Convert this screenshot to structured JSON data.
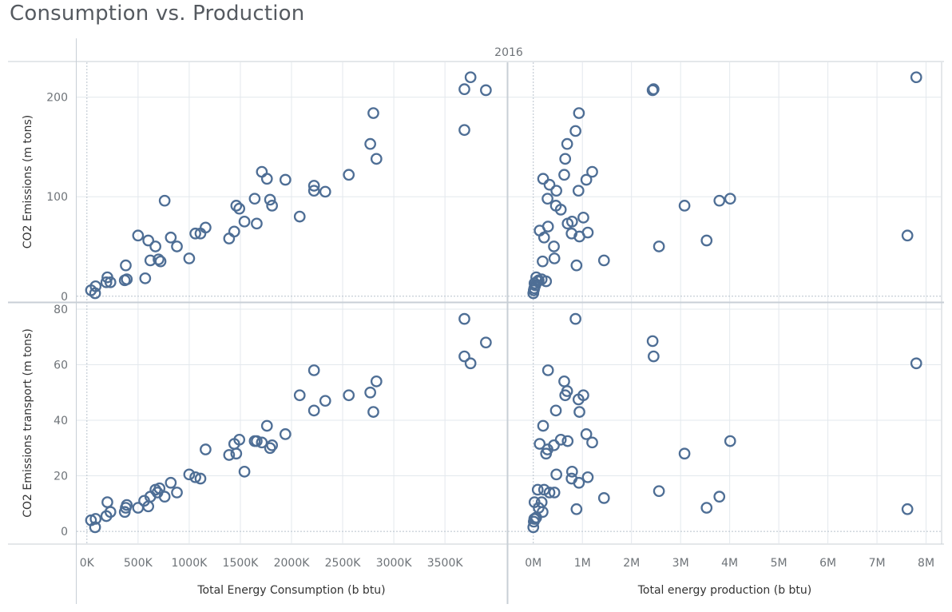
{
  "title": "Consumption vs. Production",
  "column_header": "2016",
  "colors": {
    "mark": "#4e6e95",
    "grid": "#e3e8ed",
    "border": "#c8cfd6",
    "zero": "#b8c2cc",
    "text": "#6e7378"
  },
  "chart_data": {
    "type": "scatter",
    "title": "Consumption vs. Production",
    "column_header": "2016",
    "x_axes": [
      {
        "label": "Total Energy Consumption (b btu)",
        "ticks": [
          "0K",
          "500K",
          "1000K",
          "1500K",
          "2000K",
          "2500K",
          "3000K",
          "3500K"
        ],
        "tick_values": [
          0,
          500000,
          1000000,
          1500000,
          2000000,
          2500000,
          3000000,
          3500000
        ],
        "range": [
          -100000,
          4100000
        ]
      },
      {
        "label": "Total energy production (b btu)",
        "ticks": [
          "0M",
          "1M",
          "2M",
          "3M",
          "4M",
          "5M",
          "6M",
          "7M",
          "8M"
        ],
        "tick_values": [
          0,
          1000000,
          2000000,
          3000000,
          4000000,
          5000000,
          6000000,
          7000000,
          8000000
        ],
        "range": [
          -500000,
          8300000
        ]
      }
    ],
    "y_axes": [
      {
        "label": "CO2 Emissions (m tons)",
        "ticks": [
          "0",
          "100",
          "200"
        ],
        "tick_values": [
          0,
          100,
          200
        ],
        "range": [
          -5,
          235
        ]
      },
      {
        "label": "CO2 Emissions transport (m tons)",
        "ticks": [
          "0",
          "20",
          "40",
          "60",
          "80"
        ],
        "tick_values": [
          0,
          20,
          40,
          60,
          80
        ],
        "range": [
          -4,
          82
        ]
      }
    ],
    "grid": true,
    "panels": [
      {
        "x_axis": 0,
        "y_axis": 0,
        "points": [
          [
            40000,
            6
          ],
          [
            80000,
            3
          ],
          [
            85000,
            10
          ],
          [
            190000,
            14
          ],
          [
            200000,
            19
          ],
          [
            230000,
            14
          ],
          [
            370000,
            16
          ],
          [
            390000,
            17
          ],
          [
            380000,
            31
          ],
          [
            500000,
            61
          ],
          [
            570000,
            18
          ],
          [
            600000,
            56
          ],
          [
            620000,
            36
          ],
          [
            670000,
            50
          ],
          [
            700000,
            37
          ],
          [
            720000,
            35
          ],
          [
            760000,
            96
          ],
          [
            820000,
            59
          ],
          [
            880000,
            50
          ],
          [
            1000000,
            38
          ],
          [
            1060000,
            63
          ],
          [
            1110000,
            63
          ],
          [
            1160000,
            69
          ],
          [
            1390000,
            58
          ],
          [
            1440000,
            65
          ],
          [
            1460000,
            91
          ],
          [
            1490000,
            88
          ],
          [
            1540000,
            75
          ],
          [
            1640000,
            98
          ],
          [
            1660000,
            73
          ],
          [
            1710000,
            125
          ],
          [
            1760000,
            118
          ],
          [
            1790000,
            97
          ],
          [
            1810000,
            91
          ],
          [
            1940000,
            117
          ],
          [
            2080000,
            80
          ],
          [
            2220000,
            111
          ],
          [
            2220000,
            106
          ],
          [
            2330000,
            105
          ],
          [
            2560000,
            122
          ],
          [
            2770000,
            153
          ],
          [
            2800000,
            184
          ],
          [
            2830000,
            138
          ],
          [
            3690000,
            208
          ],
          [
            3750000,
            220
          ],
          [
            3900000,
            207
          ],
          [
            3690000,
            167
          ]
        ]
      },
      {
        "x_axis": 1,
        "y_axis": 0,
        "points": [
          [
            0,
            3
          ],
          [
            10000,
            6
          ],
          [
            20000,
            8
          ],
          [
            25000,
            13
          ],
          [
            40000,
            11
          ],
          [
            60000,
            19
          ],
          [
            90000,
            15
          ],
          [
            110000,
            16
          ],
          [
            130000,
            66
          ],
          [
            170000,
            17
          ],
          [
            190000,
            35
          ],
          [
            200000,
            118
          ],
          [
            220000,
            59
          ],
          [
            260000,
            15
          ],
          [
            290000,
            98
          ],
          [
            300000,
            70
          ],
          [
            330000,
            112
          ],
          [
            420000,
            50
          ],
          [
            430000,
            38
          ],
          [
            460000,
            91
          ],
          [
            470000,
            106
          ],
          [
            560000,
            87
          ],
          [
            630000,
            122
          ],
          [
            650000,
            138
          ],
          [
            690000,
            153
          ],
          [
            700000,
            73
          ],
          [
            780000,
            63
          ],
          [
            790000,
            75
          ],
          [
            860000,
            166
          ],
          [
            880000,
            31
          ],
          [
            920000,
            106
          ],
          [
            930000,
            184
          ],
          [
            940000,
            60
          ],
          [
            1020000,
            79
          ],
          [
            1080000,
            117
          ],
          [
            1110000,
            64
          ],
          [
            1200000,
            125
          ],
          [
            1440000,
            36
          ],
          [
            2430000,
            207
          ],
          [
            2450000,
            208
          ],
          [
            2560000,
            50
          ],
          [
            3080000,
            91
          ],
          [
            3530000,
            56
          ],
          [
            3790000,
            96
          ],
          [
            4010000,
            98
          ],
          [
            7620000,
            61
          ],
          [
            7800000,
            220
          ]
        ]
      },
      {
        "x_axis": 0,
        "y_axis": 1,
        "points": [
          [
            40000,
            4
          ],
          [
            80000,
            1.5
          ],
          [
            85000,
            4.5
          ],
          [
            190000,
            5.5
          ],
          [
            200000,
            10.5
          ],
          [
            230000,
            7
          ],
          [
            370000,
            7
          ],
          [
            380000,
            8.5
          ],
          [
            390000,
            9.5
          ],
          [
            500000,
            8.5
          ],
          [
            560000,
            11
          ],
          [
            600000,
            9
          ],
          [
            620000,
            12.5
          ],
          [
            670000,
            15
          ],
          [
            690000,
            14
          ],
          [
            710000,
            15.5
          ],
          [
            760000,
            12.5
          ],
          [
            820000,
            17.5
          ],
          [
            880000,
            14
          ],
          [
            1000000,
            20.5
          ],
          [
            1060000,
            19.5
          ],
          [
            1110000,
            19
          ],
          [
            1160000,
            29.5
          ],
          [
            1390000,
            27.5
          ],
          [
            1440000,
            31.5
          ],
          [
            1460000,
            28
          ],
          [
            1490000,
            33
          ],
          [
            1540000,
            21.5
          ],
          [
            1640000,
            32.5
          ],
          [
            1660000,
            32.5
          ],
          [
            1710000,
            32
          ],
          [
            1760000,
            38
          ],
          [
            1790000,
            30
          ],
          [
            1810000,
            31
          ],
          [
            1940000,
            35
          ],
          [
            2080000,
            49
          ],
          [
            2220000,
            43.5
          ],
          [
            2220000,
            58
          ],
          [
            2330000,
            47
          ],
          [
            2560000,
            49
          ],
          [
            2770000,
            50
          ],
          [
            2800000,
            43
          ],
          [
            2830000,
            54
          ],
          [
            3690000,
            76.5
          ],
          [
            3690000,
            63
          ],
          [
            3750000,
            60.5
          ],
          [
            3900000,
            68
          ]
        ]
      },
      {
        "x_axis": 1,
        "y_axis": 1,
        "points": [
          [
            0,
            1.5
          ],
          [
            10000,
            3.5
          ],
          [
            20000,
            4.5
          ],
          [
            25000,
            10.5
          ],
          [
            40000,
            4.5
          ],
          [
            60000,
            5
          ],
          [
            90000,
            15
          ],
          [
            110000,
            8.5
          ],
          [
            130000,
            31.5
          ],
          [
            170000,
            10.5
          ],
          [
            190000,
            7
          ],
          [
            200000,
            38
          ],
          [
            220000,
            15
          ],
          [
            260000,
            28
          ],
          [
            290000,
            29.5
          ],
          [
            300000,
            58
          ],
          [
            330000,
            14
          ],
          [
            420000,
            31
          ],
          [
            430000,
            14
          ],
          [
            460000,
            43.5
          ],
          [
            470000,
            20.5
          ],
          [
            560000,
            33
          ],
          [
            630000,
            54
          ],
          [
            650000,
            49
          ],
          [
            690000,
            50.5
          ],
          [
            700000,
            32.5
          ],
          [
            780000,
            19
          ],
          [
            790000,
            21.5
          ],
          [
            860000,
            76.5
          ],
          [
            880000,
            8
          ],
          [
            920000,
            47.5
          ],
          [
            930000,
            17.5
          ],
          [
            940000,
            43
          ],
          [
            1020000,
            49
          ],
          [
            1080000,
            35
          ],
          [
            1110000,
            19.5
          ],
          [
            1200000,
            32
          ],
          [
            1440000,
            12
          ],
          [
            2430000,
            68.5
          ],
          [
            2450000,
            63
          ],
          [
            2560000,
            14.5
          ],
          [
            3080000,
            28
          ],
          [
            3530000,
            8.5
          ],
          [
            3790000,
            12.5
          ],
          [
            4010000,
            32.5
          ],
          [
            7620000,
            8
          ],
          [
            7800000,
            60.5
          ]
        ]
      }
    ]
  }
}
